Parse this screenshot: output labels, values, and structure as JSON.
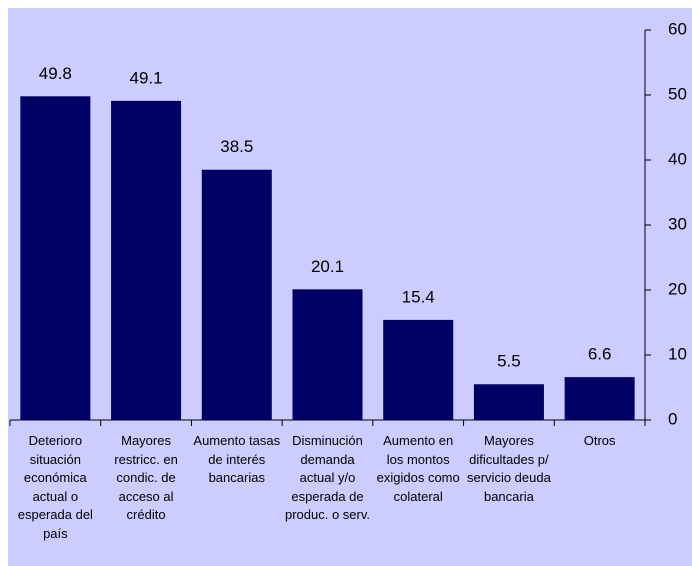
{
  "chart_data": {
    "type": "bar",
    "categories": [
      "Deterioro situación económica actual o esperada del país",
      "Mayores restricc. en condic. de acceso al crédito",
      "Aumento tasas de interés bancarias",
      "Disminución demanda actual y/o esperada de produc. o serv.",
      "Aumento en los montos exigidos como colateral",
      "Mayores dificultades p/ servicio deuda bancaria",
      "Otros"
    ],
    "values": [
      49.8,
      49.1,
      38.5,
      20.1,
      15.4,
      5.5,
      6.6
    ],
    "color": "#000066",
    "ylim": [
      0,
      60
    ],
    "yticks": [
      0,
      10,
      20,
      30,
      40,
      50,
      60
    ]
  }
}
